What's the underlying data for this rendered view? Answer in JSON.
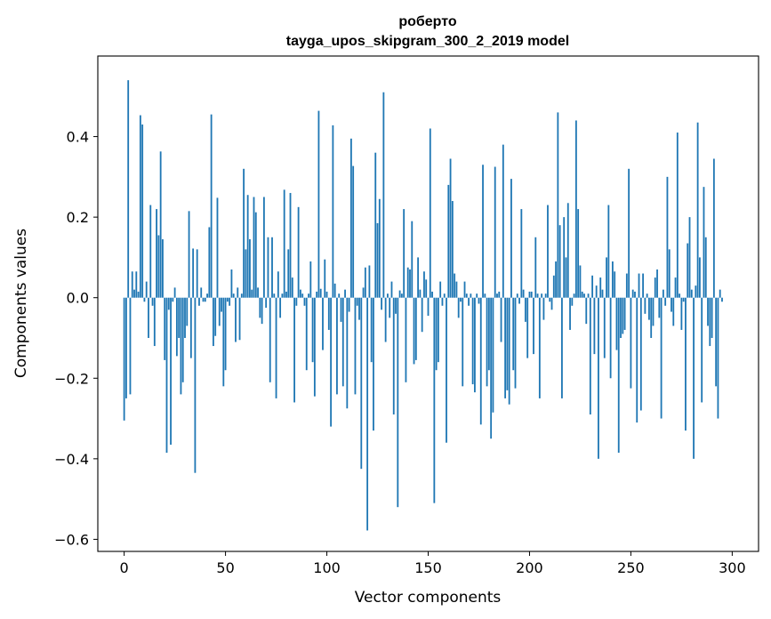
{
  "chart_data": {
    "type": "bar",
    "title_lines": [
      "роберто",
      "tayga_upos_skipgram_300_2_2019 model"
    ],
    "xlabel": "Vector components",
    "ylabel": "Components values",
    "xlim": [
      -13,
      313
    ],
    "ylim": [
      -0.63,
      0.6
    ],
    "xticks": [
      0,
      50,
      100,
      150,
      200,
      250,
      300
    ],
    "yticks": [
      -0.6,
      -0.4,
      -0.2,
      0.0,
      0.2,
      0.4
    ],
    "ytick_labels": [
      "−0.6",
      "−0.4",
      "−0.2",
      "0.0",
      "0.2",
      "0.4"
    ],
    "grid": false,
    "bar_color": "#1f77b4",
    "x_start": 0,
    "values": [
      -0.305,
      -0.25,
      0.54,
      -0.24,
      0.065,
      0.02,
      0.065,
      0.015,
      0.453,
      0.43,
      -0.01,
      0.04,
      -0.1,
      0.23,
      -0.02,
      -0.12,
      0.22,
      0.155,
      0.363,
      0.145,
      -0.155,
      -0.385,
      -0.03,
      -0.365,
      -0.01,
      0.025,
      -0.145,
      -0.1,
      -0.24,
      -0.21,
      -0.1,
      -0.07,
      0.215,
      -0.15,
      0.122,
      -0.435,
      0.12,
      -0.02,
      0.025,
      -0.01,
      -0.01,
      0.01,
      0.175,
      0.455,
      -0.12,
      -0.095,
      0.248,
      -0.07,
      -0.035,
      -0.22,
      -0.18,
      -0.01,
      -0.02,
      0.07,
      0.01,
      -0.11,
      0.025,
      -0.105,
      0.01,
      0.32,
      0.12,
      0.255,
      0.145,
      0.02,
      0.25,
      0.212,
      0.025,
      -0.05,
      -0.065,
      0.25,
      -0.025,
      0.15,
      -0.21,
      0.15,
      0.01,
      -0.25,
      0.065,
      -0.05,
      0.01,
      0.268,
      0.015,
      0.12,
      0.26,
      0.05,
      -0.26,
      -0.02,
      0.225,
      0.02,
      0.01,
      -0.02,
      -0.18,
      0.01,
      0.09,
      -0.16,
      -0.245,
      0.015,
      0.464,
      0.022,
      -0.13,
      0.095,
      0.015,
      -0.08,
      -0.32,
      0.428,
      0.035,
      -0.24,
      0.01,
      -0.06,
      -0.22,
      0.02,
      -0.275,
      -0.035,
      0.395,
      0.327,
      -0.24,
      -0.02,
      -0.055,
      -0.425,
      0.025,
      0.075,
      -0.578,
      0.08,
      -0.16,
      -0.33,
      0.36,
      0.185,
      0.245,
      -0.03,
      0.51,
      -0.11,
      0.01,
      -0.05,
      0.04,
      -0.29,
      -0.04,
      -0.52,
      0.018,
      0.01,
      0.22,
      -0.21,
      0.075,
      0.07,
      0.19,
      -0.165,
      -0.155,
      0.1,
      0.02,
      -0.085,
      0.065,
      0.045,
      -0.045,
      0.42,
      0.015,
      -0.51,
      -0.18,
      -0.16,
      0.04,
      -0.02,
      0.01,
      -0.36,
      0.28,
      0.345,
      0.24,
      0.06,
      0.04,
      -0.05,
      -0.01,
      -0.22,
      0.04,
      0.01,
      -0.02,
      0.01,
      -0.215,
      -0.235,
      0.01,
      -0.015,
      -0.315,
      0.33,
      0.01,
      -0.22,
      -0.18,
      -0.35,
      -0.285,
      0.325,
      0.01,
      0.015,
      -0.11,
      0.38,
      -0.25,
      -0.23,
      -0.265,
      0.295,
      -0.18,
      -0.225,
      0.01,
      -0.015,
      0.22,
      0.02,
      -0.06,
      -0.15,
      0.015,
      0.015,
      -0.14,
      0.15,
      0.01,
      -0.25,
      0.01,
      -0.055,
      0.01,
      0.23,
      -0.01,
      -0.03,
      0.055,
      0.09,
      0.46,
      0.18,
      -0.25,
      0.2,
      0.1,
      0.235,
      -0.08,
      -0.02,
      0.01,
      0.44,
      0.22,
      0.08,
      0.015,
      0.01,
      -0.065,
      0.01,
      -0.29,
      0.055,
      -0.14,
      0.03,
      -0.4,
      0.05,
      0.02,
      -0.15,
      0.1,
      0.23,
      -0.2,
      0.09,
      0.065,
      -0.13,
      -0.385,
      -0.1,
      -0.09,
      -0.08,
      0.06,
      0.32,
      -0.225,
      0.02,
      0.015,
      -0.31,
      0.06,
      -0.28,
      0.06,
      -0.04,
      0.01,
      -0.055,
      -0.1,
      -0.07,
      0.05,
      0.07,
      -0.05,
      -0.3,
      0.02,
      -0.02,
      0.3,
      0.12,
      -0.035,
      -0.07,
      0.05,
      0.41,
      0.01,
      -0.08,
      -0.01,
      -0.33,
      0.135,
      0.2,
      0.02,
      -0.4,
      0.03,
      0.435,
      0.1,
      -0.26,
      0.275,
      0.15,
      -0.07,
      -0.12,
      -0.1,
      0.345,
      -0.22,
      -0.3,
      0.02,
      -0.01
    ]
  }
}
